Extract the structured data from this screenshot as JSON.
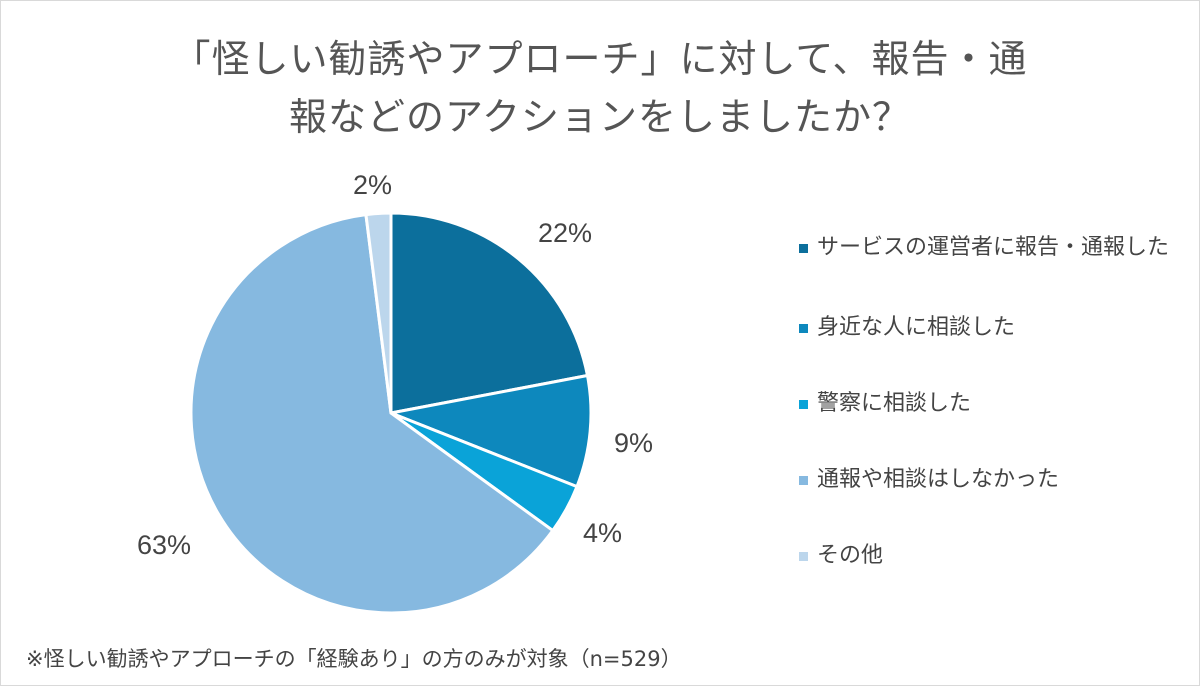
{
  "title": {
    "line1": "「怪しい勧誘やアプローチ」に対して、報告・通",
    "line2": "報などのアクションをしましたか？"
  },
  "chart_data": {
    "type": "pie",
    "title": "「怪しい勧誘やアプローチ」に対して、報告・通報などのアクションをしましたか？",
    "categories": [
      "サービスの運営者に報告・通報した",
      "身近な人に相談した",
      "警察に相談した",
      "通報や相談はしなかった",
      "その他"
    ],
    "values": [
      22,
      9,
      4,
      63,
      2
    ],
    "data_labels": [
      "22%",
      "9%",
      "4%",
      "63%",
      "2%"
    ],
    "colors": [
      "#0c6f9c",
      "#0d88bd",
      "#0aa3d8",
      "#86b9e0",
      "#bcd6ec"
    ],
    "legend_position": "right"
  },
  "footnote": "※怪しい勧誘やアプローチの「経験あり」の方のみが対象（n=529）"
}
